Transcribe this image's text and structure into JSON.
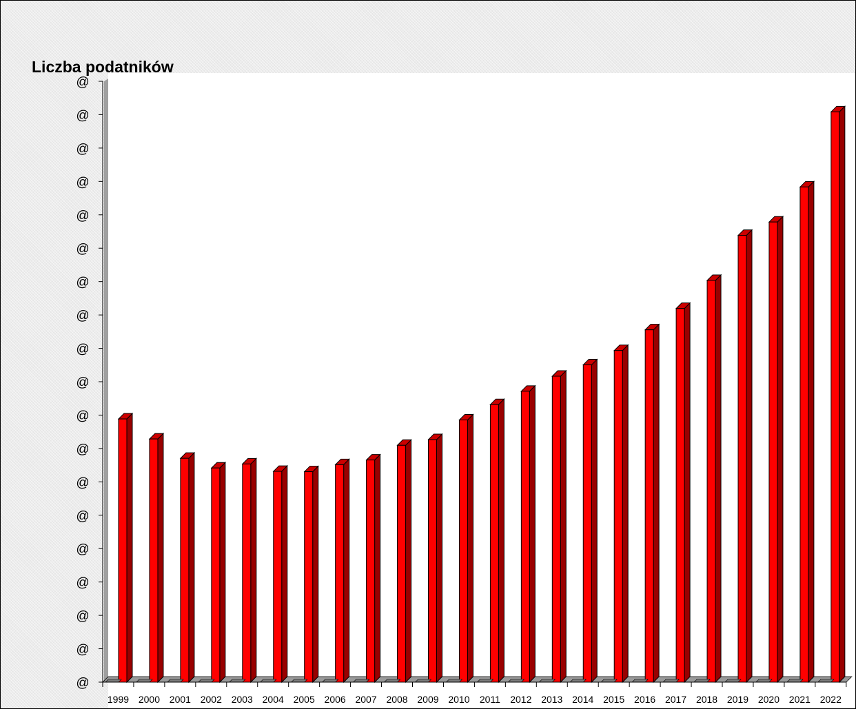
{
  "chart_data": {
    "type": "bar",
    "title": "Liczba podatników",
    "xlabel": "",
    "ylabel": "",
    "categories": [
      "1999",
      "2000",
      "2001",
      "2002",
      "2003",
      "2004",
      "2005",
      "2006",
      "2007",
      "2008",
      "2009",
      "2010",
      "2011",
      "2012",
      "2013",
      "2014",
      "2015",
      "2016",
      "2017",
      "2018",
      "2019",
      "2020",
      "2021",
      "2022"
    ],
    "values": [
      8.05,
      7.45,
      6.87,
      6.58,
      6.7,
      6.48,
      6.47,
      6.68,
      6.82,
      7.26,
      7.43,
      8.02,
      8.48,
      8.88,
      9.33,
      9.67,
      10.1,
      10.72,
      11.36,
      12.2,
      13.55,
      13.95,
      15.0,
      17.25
    ],
    "ylim": [
      0,
      18
    ],
    "y_tick_labels": [
      "@",
      "@",
      "@",
      "@",
      "@",
      "@",
      "@",
      "@",
      "@",
      "@",
      "@",
      "@",
      "@",
      "@",
      "@",
      "@",
      "@",
      "@",
      "@"
    ],
    "grid": false,
    "legend": "none",
    "colors": {
      "bar_front": "#ff0000",
      "bar_side": "#990000",
      "bar_top": "#cc0000",
      "bar_outline": "#000000",
      "plot_background": "#ffffff",
      "wall_shadow": "#a0a0a0",
      "floor": "#9a9a9a"
    }
  }
}
